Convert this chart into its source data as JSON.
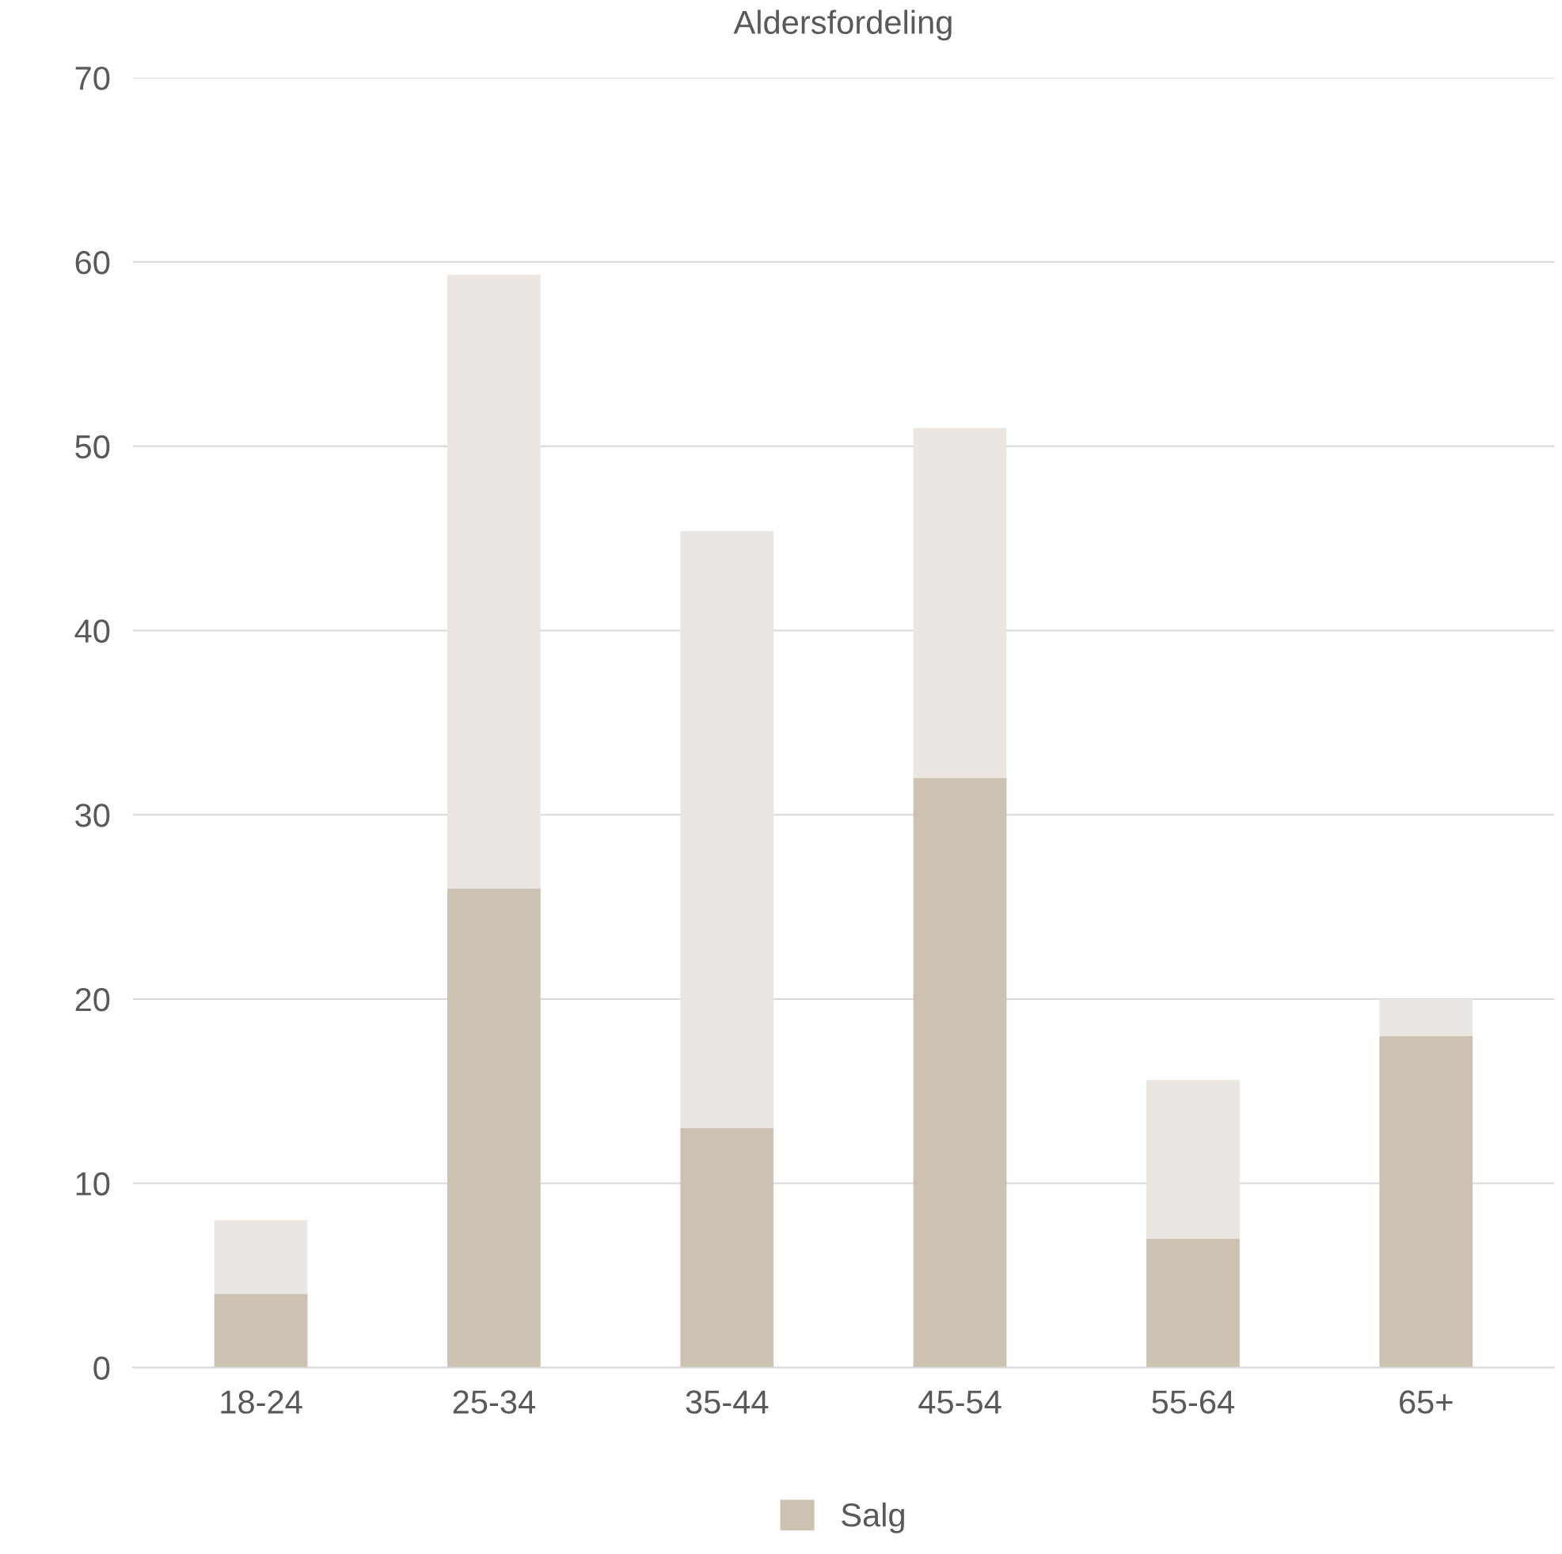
{
  "chart_data": {
    "type": "bar",
    "title": "Aldersfordeling",
    "stacked": true,
    "categories": [
      "18-24",
      "25-34",
      "35-44",
      "45-54",
      "55-64",
      "65+"
    ],
    "series": [
      {
        "name": "Salg",
        "color": "#cdc2b2",
        "values": [
          4,
          26,
          13,
          32,
          7,
          18
        ]
      },
      {
        "color": "#ebe6e1",
        "values": [
          4,
          33.3,
          32.4,
          19,
          8.6,
          2
        ]
      }
    ],
    "ylim": [
      0,
      70
    ],
    "yticks": [
      0,
      10,
      20,
      30,
      40,
      50,
      60,
      70
    ],
    "grid": "y",
    "legend": "bottom"
  }
}
